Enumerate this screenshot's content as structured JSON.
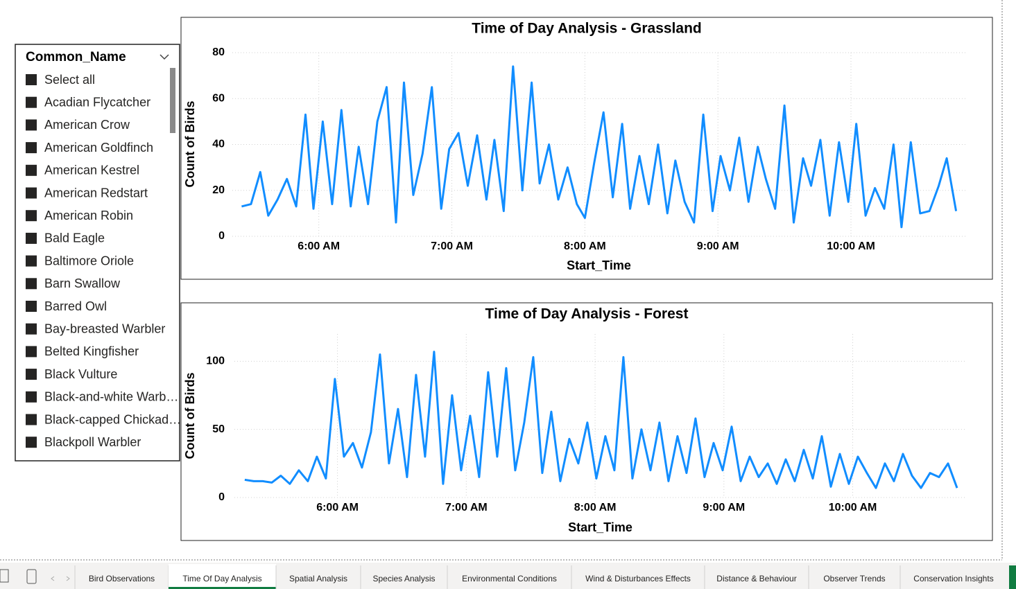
{
  "slicer": {
    "header": "Common_Name",
    "items": [
      "Select all",
      "Acadian Flycatcher",
      "American Crow",
      "American Goldfinch",
      "American Kestrel",
      "American Redstart",
      "American Robin",
      "Bald Eagle",
      "Baltimore Oriole",
      "Barn Swallow",
      "Barred Owl",
      "Bay-breasted Warbler",
      "Belted Kingfisher",
      "Black Vulture",
      "Black-and-white Warb…",
      "Black-capped Chickad…",
      "Blackpoll Warbler"
    ]
  },
  "chart_data": [
    {
      "type": "line",
      "title": "Time of Day Analysis - Grassland",
      "x_label": "Start_Time",
      "y_label": "Count of Birds",
      "color": "#118dff",
      "grid": true,
      "x": [
        5.42,
        5.49,
        5.56,
        5.62,
        5.69,
        5.76,
        5.83,
        5.9,
        5.96,
        6.03,
        6.1,
        6.17,
        6.24,
        6.3,
        6.37,
        6.44,
        6.51,
        6.58,
        6.64,
        6.71,
        6.78,
        6.85,
        6.92,
        6.98,
        7.05,
        7.12,
        7.19,
        7.26,
        7.32,
        7.39,
        7.46,
        7.53,
        7.6,
        7.66,
        7.73,
        7.8,
        7.87,
        7.94,
        8.0,
        8.07,
        8.14,
        8.21,
        8.28,
        8.34,
        8.41,
        8.48,
        8.55,
        8.62,
        8.68,
        8.75,
        8.82,
        8.89,
        8.96,
        9.02,
        9.09,
        9.16,
        9.23,
        9.3,
        9.36,
        9.43,
        9.5,
        9.57,
        9.64,
        9.7,
        9.77,
        9.84,
        9.91,
        9.98,
        10.04,
        10.11,
        10.18,
        10.25,
        10.32,
        10.38,
        10.45,
        10.52,
        10.59,
        10.66,
        10.72,
        10.79
      ],
      "values": [
        13,
        14,
        28,
        9,
        16,
        25,
        13,
        53,
        12,
        50,
        14,
        55,
        13,
        39,
        14,
        50,
        65,
        6,
        67,
        18,
        36,
        65,
        12,
        38,
        45,
        22,
        44,
        16,
        42,
        11,
        74,
        20,
        67,
        23,
        40,
        16,
        30,
        14,
        8,
        32,
        54,
        17,
        49,
        12,
        35,
        14,
        40,
        10,
        33,
        15,
        6,
        53,
        11,
        35,
        20,
        43,
        15,
        39,
        25,
        12,
        57,
        6,
        34,
        22,
        42,
        9,
        41,
        15,
        49,
        9,
        21,
        12,
        40,
        4,
        41,
        10,
        11,
        22,
        34,
        11
      ],
      "xlim": [
        5.35,
        10.86
      ],
      "ylim": [
        0,
        80
      ],
      "xticks": [
        {
          "value": 6,
          "label": "6:00 AM"
        },
        {
          "value": 7,
          "label": "7:00 AM"
        },
        {
          "value": 8,
          "label": "8:00 AM"
        },
        {
          "value": 9,
          "label": "9:00 AM"
        },
        {
          "value": 10,
          "label": "10:00 AM"
        }
      ],
      "yticks": [
        0,
        20,
        40,
        60,
        80
      ]
    },
    {
      "type": "line",
      "title": "Time of Day Analysis - Forest",
      "x_label": "Start_Time",
      "y_label": "Count of Birds",
      "color": "#118dff",
      "grid": true,
      "x": [
        5.28,
        5.35,
        5.42,
        5.49,
        5.56,
        5.63,
        5.7,
        5.77,
        5.84,
        5.91,
        5.98,
        6.05,
        6.12,
        6.19,
        6.26,
        6.33,
        6.4,
        6.47,
        6.54,
        6.61,
        6.68,
        6.75,
        6.82,
        6.89,
        6.96,
        7.03,
        7.1,
        7.17,
        7.24,
        7.31,
        7.38,
        7.45,
        7.52,
        7.59,
        7.66,
        7.73,
        7.8,
        7.87,
        7.94,
        8.01,
        8.08,
        8.15,
        8.22,
        8.29,
        8.36,
        8.43,
        8.5,
        8.57,
        8.64,
        8.71,
        8.78,
        8.85,
        8.92,
        8.99,
        9.06,
        9.13,
        9.2,
        9.27,
        9.34,
        9.41,
        9.48,
        9.55,
        9.62,
        9.69,
        9.76,
        9.83,
        9.9,
        9.97,
        10.04,
        10.11,
        10.18,
        10.25,
        10.32,
        10.39,
        10.46,
        10.53,
        10.6,
        10.67,
        10.74,
        10.81
      ],
      "values": [
        13,
        12,
        12,
        11,
        16,
        10,
        20,
        12,
        30,
        14,
        87,
        30,
        40,
        22,
        48,
        105,
        25,
        65,
        15,
        90,
        30,
        107,
        10,
        75,
        20,
        60,
        15,
        92,
        30,
        95,
        20,
        55,
        103,
        18,
        63,
        12,
        43,
        25,
        55,
        14,
        45,
        20,
        103,
        14,
        50,
        20,
        55,
        12,
        45,
        18,
        58,
        15,
        40,
        20,
        52,
        12,
        30,
        15,
        25,
        10,
        28,
        12,
        35,
        14,
        45,
        8,
        32,
        10,
        30,
        18,
        7,
        25,
        12,
        32,
        16,
        7,
        18,
        15,
        25,
        7
      ],
      "xlim": [
        5.2,
        10.88
      ],
      "ylim": [
        0,
        120
      ],
      "xticks": [
        {
          "value": 6,
          "label": "6:00 AM"
        },
        {
          "value": 7,
          "label": "7:00 AM"
        },
        {
          "value": 8,
          "label": "8:00 AM"
        },
        {
          "value": 9,
          "label": "9:00 AM"
        },
        {
          "value": 10,
          "label": "10:00 AM"
        }
      ],
      "yticks": [
        0,
        50,
        100
      ]
    }
  ],
  "tabs": [
    "Bird Observations",
    "Time Of Day Analysis",
    "Spatial Analysis",
    "Species Analysis",
    "Environmental Conditions",
    "Wind & Disturbances Effects",
    "Distance & Behaviour",
    "Observer Trends",
    "Conservation Insights"
  ]
}
